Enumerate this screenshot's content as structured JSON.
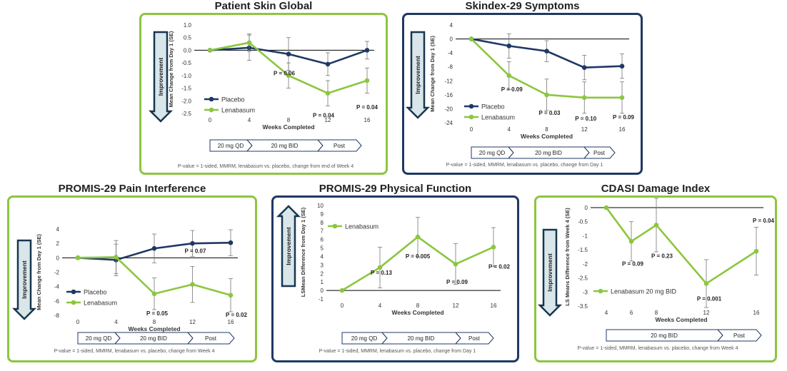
{
  "colors": {
    "placebo": "#1f3864",
    "lenabasum": "#8cc63f",
    "green_border": "#8cc63f",
    "blue_border": "#1f3864",
    "arrow_fill": "#d9e6ea",
    "arrow_stroke": "#17364f"
  },
  "panels": [
    {
      "title": "Patient Skin Global",
      "improvement": "Improvement",
      "improvement_direction": "down",
      "ylabel": "Mean Change from Day 1 (SE)",
      "xlabel": "Weeks Completed",
      "phases": [
        "20 mg QD",
        "20 mg BID",
        "Post"
      ],
      "footnote": "P-value = 1-sided, MMRM,  lenabasum vs. placebo, change from end of Week 4",
      "pvalues": [
        "P = 0.06",
        "P = 0.04",
        "P = 0.04"
      ]
    },
    {
      "title": "Skindex-29 Symptoms",
      "improvement": "Improvement",
      "improvement_direction": "down",
      "ylabel": "Mean Change from Day 1 (SE)",
      "xlabel": "Weeks Completed",
      "phases": [
        "20 mg QD",
        "20 mg BID",
        "Post"
      ],
      "footnote": "P-value = 1-sided, MMRM,  lenabasum vs. placebo, change from Day 1",
      "pvalues": [
        "P = 0.09",
        "P = 0.03",
        "P = 0.10",
        "P = 0.09"
      ]
    },
    {
      "title": "PROMIS-29 Pain Interference",
      "improvement": "Improvement",
      "improvement_direction": "down",
      "ylabel": "Mean Change from Day 1 (SE)",
      "xlabel": "Weeks Completed",
      "phases": [
        "20 mg QD",
        "20 mg BID",
        "Post"
      ],
      "footnote": "P-value = 1-sided, MMRM,  lenabasum vs. placebo, change from Week 4",
      "pvalues": [
        "P = 0.05",
        "P = 0.07",
        "P = 0.02"
      ]
    },
    {
      "title": "PROMIS-29 Physical Function",
      "improvement": "Improvement",
      "improvement_direction": "up",
      "ylabel": "LSMean Difference from Day 1 (SE)",
      "xlabel": "Weeks Completed",
      "phases": [
        "20 mg QD",
        "20 mg BID",
        "Post"
      ],
      "footnote": "P-value = 1-sided, MMRM,  lenabasum vs. placebo, change from Day 1",
      "pvalues": [
        "P = 0.13",
        "P = 0.005",
        "P = 0.09",
        "P = 0.02"
      ]
    },
    {
      "title": "CDASI Damage Index",
      "improvement": "Improvement",
      "improvement_direction": "down",
      "ylabel": "LS Means Difference  from Week 4 (SE)",
      "xlabel": "Weeks Completed",
      "phases": [
        "20 mg BID",
        "Post"
      ],
      "footnote": "P-value = 1-sided, MMRM,  lenabasum vs. placebo, change from Week 4",
      "pvalues": [
        "P = 0.09",
        "P = 0.23",
        "P = 0.001",
        "P = 0.04"
      ]
    }
  ],
  "chart_data": [
    {
      "type": "line",
      "title": "Patient Skin Global",
      "xlabel": "Weeks Completed",
      "ylabel": "Mean Change from Day 1 (SE)",
      "x": [
        0,
        4,
        8,
        12,
        16
      ],
      "ylim": [
        -2.5,
        1.0
      ],
      "yticks": [
        "1.0",
        "0.5",
        "0.0",
        "-0.5",
        "-1.0",
        "-1.5",
        "-2.0",
        "-2.5"
      ],
      "legend_position": "bottom-left",
      "series": [
        {
          "name": "Placebo",
          "values": [
            0,
            0.1,
            -0.15,
            -0.55,
            0.0
          ],
          "errors": [
            0,
            0.5,
            0.65,
            0.45,
            0.35
          ]
        },
        {
          "name": "Lenabasum",
          "values": [
            0,
            0.3,
            -1.0,
            -1.7,
            -1.2
          ],
          "errors": [
            0,
            0.35,
            0.5,
            0.5,
            0.5
          ]
        }
      ]
    },
    {
      "type": "line",
      "title": "Skindex-29 Symptoms",
      "xlabel": "Weeks Completed",
      "ylabel": "Mean Change from Day 1 (SE)",
      "x": [
        0,
        4,
        8,
        12,
        16
      ],
      "ylim": [
        -24,
        4
      ],
      "yticks": [
        "4",
        "0",
        "-4",
        "-8",
        "-12",
        "-16",
        "-20",
        "-24"
      ],
      "legend_position": "bottom-left",
      "series": [
        {
          "name": "Placebo",
          "values": [
            0,
            -2,
            -3.5,
            -8.2,
            -7.8
          ],
          "errors": [
            0,
            3.5,
            3,
            3.5,
            3.5
          ]
        },
        {
          "name": "Lenabasum",
          "values": [
            0,
            -10.5,
            -16,
            -16.8,
            -16.8
          ],
          "errors": [
            0,
            4,
            4.5,
            4.5,
            4.5
          ]
        }
      ]
    },
    {
      "type": "line",
      "title": "PROMIS-29 Pain Interference",
      "xlabel": "Weeks Completed",
      "ylabel": "Mean Change from Day 1 (SE)",
      "x": [
        0,
        4,
        8,
        12,
        16
      ],
      "ylim": [
        -8,
        4
      ],
      "yticks": [
        "4",
        "2",
        "0",
        "-2",
        "-4",
        "-6",
        "-8"
      ],
      "legend_position": "bottom-left",
      "series": [
        {
          "name": "Placebo",
          "values": [
            0,
            -0.3,
            1.3,
            2.0,
            2.1
          ],
          "errors": [
            0,
            2.2,
            2.0,
            1.8,
            1.8
          ]
        },
        {
          "name": "Lenabasum",
          "values": [
            0,
            0.1,
            -5.0,
            -3.7,
            -5.2
          ],
          "errors": [
            0,
            2.3,
            2.2,
            2.5,
            2.3
          ]
        }
      ]
    },
    {
      "type": "line",
      "title": "PROMIS-29 Physical Function",
      "xlabel": "Weeks Completed",
      "ylabel": "LSMean Difference from Day 1 (SE)",
      "x": [
        0,
        4,
        8,
        12,
        16
      ],
      "ylim": [
        -1,
        10
      ],
      "yticks": [
        "10",
        "9",
        "8",
        "7",
        "6",
        "5",
        "4",
        "3",
        "2",
        "1",
        "0",
        "-1"
      ],
      "legend_position": "top-left",
      "series": [
        {
          "name": "Lenabasum",
          "values": [
            0,
            2.7,
            6.3,
            3.1,
            5.1
          ],
          "errors": [
            0,
            2.4,
            2.3,
            2.4,
            2.3
          ]
        }
      ]
    },
    {
      "type": "line",
      "title": "CDASI Damage Index",
      "xlabel": "Weeks Completed",
      "ylabel": "LS Means Difference  from Week 4 (SE)",
      "x": [
        4,
        6,
        8,
        12,
        16
      ],
      "ylim": [
        -3.5,
        0
      ],
      "yticks": [
        "0",
        "-0.5",
        "-1",
        "-1.5",
        "-2",
        "-2.5",
        "-3",
        "-3.5"
      ],
      "legend_position": "bottom-left",
      "series": [
        {
          "name": "Lenabasum  20 mg BID",
          "values": [
            0,
            -1.2,
            -0.62,
            -2.7,
            -1.55
          ],
          "errors": [
            0,
            0.7,
            0.95,
            0.85,
            0.85
          ]
        }
      ]
    }
  ]
}
